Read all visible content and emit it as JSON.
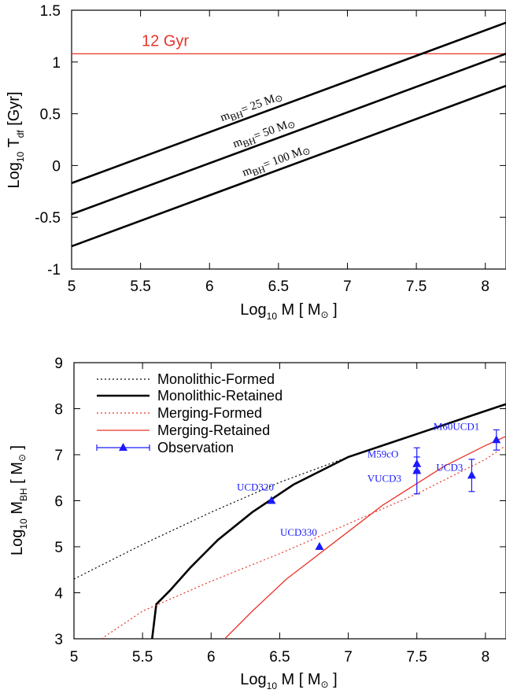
{
  "chart_data": [
    {
      "type": "line",
      "xlim": [
        5,
        8.15
      ],
      "ylim": [
        -1,
        1.5
      ],
      "xticks": [
        "5",
        "5.5",
        "6",
        "6.5",
        "7",
        "7.5",
        "8"
      ],
      "yticks": [
        "-1",
        "-0.5",
        "0",
        "0.5",
        "1",
        "1.5"
      ],
      "xlabel": {
        "pre": "Log",
        "sub": "10",
        "post": " M [ M",
        "sun": "⊙",
        "end": " ]"
      },
      "ylabel": {
        "pre": "Log",
        "sub": "10",
        "post": " T",
        "sub2": "df",
        "end": " [Gyr]"
      },
      "hline": {
        "y": 1.079,
        "label": "12 Gyr",
        "color": "#e8342a"
      },
      "series": [
        {
          "label_m": "m",
          "label_sub": "BH",
          "label_rest": "= 25 M",
          "label_sun": "⊙",
          "x": [
            5,
            8.15
          ],
          "y": [
            -0.17,
            1.38
          ],
          "color": "#000000"
        },
        {
          "label_m": "m",
          "label_sub": "BH",
          "label_rest": "= 50 M",
          "label_sun": "⊙",
          "x": [
            5,
            8.15
          ],
          "y": [
            -0.47,
            1.08
          ],
          "color": "#000000"
        },
        {
          "label_m": "m",
          "label_sub": "BH",
          "label_rest": "= 100 M",
          "label_sun": "⊙",
          "x": [
            5,
            8.15
          ],
          "y": [
            -0.78,
            0.77
          ],
          "color": "#000000"
        }
      ],
      "grid": false
    },
    {
      "type": "line",
      "xlim": [
        5,
        8.15
      ],
      "ylim": [
        3,
        9
      ],
      "xticks": [
        "5",
        "5.5",
        "6",
        "6.5",
        "7",
        "7.5",
        "8"
      ],
      "yticks": [
        "3",
        "4",
        "5",
        "6",
        "7",
        "8",
        "9"
      ],
      "xlabel": {
        "pre": "Log",
        "sub": "10",
        "post": " M [ M",
        "sun": "⊙",
        "end": " ]"
      },
      "ylabel": {
        "pre": "Log",
        "sub": "10",
        "post": " M",
        "sub2": "BH",
        "end": " [ M",
        "sun": "⊙",
        "end2": " ]"
      },
      "legend_position": "top-left",
      "series": [
        {
          "name": "Monolithic-Formed",
          "color": "#000000",
          "dash": "2,3",
          "width": 1.2,
          "x": [
            5,
            5.5,
            6,
            6.5,
            7,
            7.5,
            8,
            8.15
          ],
          "y": [
            4.3,
            5.05,
            5.75,
            6.4,
            6.95,
            7.45,
            7.95,
            8.1
          ]
        },
        {
          "name": "Monolithic-Retained",
          "color": "#000000",
          "dash": "",
          "width": 2.6,
          "x": [
            5.57,
            5.6,
            5.7,
            5.85,
            6.05,
            6.3,
            6.6,
            7.0,
            7.5,
            8.0,
            8.15
          ],
          "y": [
            3.0,
            3.75,
            4.05,
            4.55,
            5.15,
            5.75,
            6.35,
            6.95,
            7.45,
            7.95,
            8.1
          ]
        },
        {
          "name": "Merging-Formed",
          "color": "#e8342a",
          "dash": "2,3",
          "width": 1.2,
          "x": [
            5.2,
            5.5,
            6,
            6.5,
            7,
            7.5,
            8,
            8.15
          ],
          "y": [
            3.0,
            3.6,
            4.25,
            4.85,
            5.5,
            6.15,
            6.9,
            7.2
          ]
        },
        {
          "name": "Merging-Retained",
          "color": "#e8342a",
          "dash": "",
          "width": 1.3,
          "x": [
            6.1,
            6.3,
            6.55,
            6.9,
            7.25,
            7.7,
            8.0,
            8.15
          ],
          "y": [
            3.0,
            3.6,
            4.3,
            5.1,
            5.9,
            6.75,
            7.2,
            7.4
          ]
        },
        {
          "name": "Observation",
          "color": "#1a1aff",
          "marker": "triangle",
          "points": [
            {
              "label": "UCD320",
              "x": 6.44,
              "y": 6.0,
              "err": 0
            },
            {
              "label": "UCD330",
              "x": 6.79,
              "y": 5.0,
              "err": 0
            },
            {
              "label": "M59cO",
              "x": 7.5,
              "y": 6.8,
              "err": 0.15
            },
            {
              "label": "VUCD3",
              "x": 7.5,
              "y": 6.65,
              "err": 0.5
            },
            {
              "label": "UCD3",
              "x": 7.9,
              "y": 6.55,
              "err": 0.35
            },
            {
              "label": "M60UCD1",
              "x": 8.08,
              "y": 7.32,
              "err": 0.22
            }
          ]
        }
      ],
      "grid": false
    }
  ]
}
